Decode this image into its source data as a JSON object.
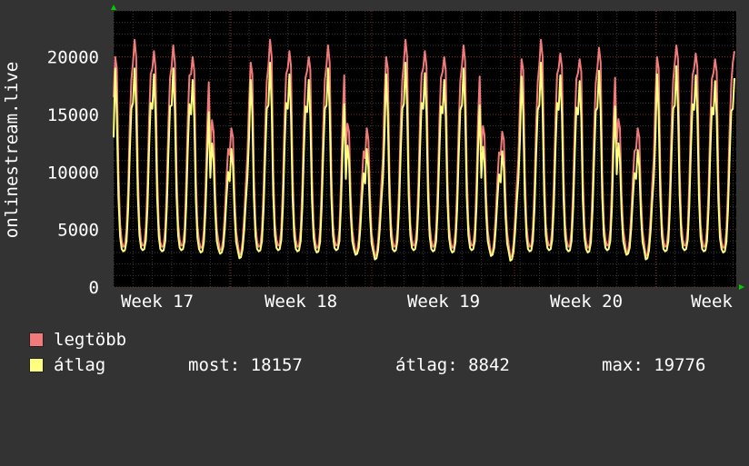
{
  "chart_data": {
    "type": "line",
    "ylabel": "onlinestream.live",
    "ylim": [
      0,
      24000
    ],
    "yticks": [
      0,
      5000,
      10000,
      15000,
      20000
    ],
    "x_tick_labels": [
      "Week 17",
      "Week 18",
      "Week 19",
      "Week 20",
      "Week"
    ],
    "grid": true,
    "legend_position": "bottom-left",
    "samples_per_day": 12,
    "series": [
      {
        "name": "legtöbb",
        "color": "#f27a7a",
        "values": [
          16500,
          20000,
          19000,
          10000,
          5500,
          4000,
          3500,
          3600,
          5000,
          8500,
          14000,
          18000,
          19500,
          21500,
          20000,
          10000,
          5500,
          4000,
          3600,
          3700,
          5200,
          9000,
          14500,
          18500,
          19000,
          20500,
          19000,
          9800,
          5400,
          3900,
          3500,
          3600,
          5100,
          8800,
          14200,
          18200,
          19200,
          21000,
          19500,
          10000,
          5500,
          4100,
          3600,
          3700,
          5000,
          9000,
          14600,
          18400,
          18500,
          20000,
          18800,
          9500,
          5300,
          4000,
          3400,
          3500,
          4900,
          8500,
          13800,
          17800,
          12000,
          14500,
          13500,
          8000,
          5000,
          4000,
          3200,
          3300,
          4200,
          6500,
          9500,
          12000,
          11500,
          13800,
          13000,
          7800,
          4800,
          3800,
          2800,
          2900,
          4000,
          6200,
          9000,
          11500,
          16000,
          19500,
          18500,
          9800,
          5400,
          3900,
          3500,
          3600,
          5000,
          8600,
          14000,
          17900,
          19200,
          21500,
          20000,
          10000,
          5500,
          4100,
          3600,
          3700,
          5100,
          9000,
          14500,
          18500,
          19000,
          20500,
          19200,
          9900,
          5400,
          4000,
          3500,
          3600,
          5000,
          8800,
          14300,
          18200,
          18800,
          20000,
          18900,
          9700,
          5300,
          3900,
          3400,
          3500,
          4900,
          8600,
          14000,
          18000,
          19300,
          21000,
          19500,
          10000,
          5500,
          4100,
          3600,
          3700,
          5000,
          9000,
          14500,
          18400,
          11800,
          14200,
          13500,
          7900,
          4900,
          3900,
          3000,
          3100,
          4100,
          6400,
          9300,
          11800,
          11200,
          13800,
          12800,
          7700,
          4700,
          3700,
          2700,
          2800,
          3900,
          6100,
          8900,
          11300,
          16500,
          20000,
          19000,
          10000,
          5500,
          4000,
          3500,
          3600,
          5000,
          8600,
          14200,
          18000,
          19500,
          21500,
          20000,
          10000,
          5500,
          4100,
          3600,
          3700,
          5100,
          9000,
          14600,
          18500,
          19000,
          20500,
          19200,
          9900,
          5400,
          4000,
          3500,
          3600,
          5000,
          8800,
          14300,
          18200,
          18700,
          20000,
          18800,
          9600,
          5300,
          3900,
          3400,
          3500,
          4900,
          8500,
          13900,
          17900,
          19200,
          21000,
          19600,
          10000,
          5500,
          4100,
          3600,
          3700,
          5000,
          9000,
          14500,
          18300,
          12000,
          14000,
          13200,
          7900,
          4900,
          3900,
          2900,
          3000,
          4100,
          6300,
          9200,
          11700,
          11500,
          13500,
          12800,
          7700,
          4700,
          3700,
          2600,
          2700,
          3800,
          6000,
          8800,
          11200,
          16200,
          19800,
          18900,
          9900,
          5400,
          4000,
          3500,
          3600,
          5000,
          8600,
          14100,
          17800,
          19300,
          21500,
          20000,
          10000,
          5500,
          4100,
          3600,
          3700,
          5100,
          9000,
          14600,
          18500,
          19000,
          20300,
          19100,
          9800,
          5400,
          4000,
          3500,
          3600,
          5000,
          8700,
          14200,
          18100,
          18600,
          19800,
          18700,
          9600,
          5300,
          3900,
          3400,
          3500,
          4900,
          8500,
          13800,
          17700,
          19000,
          20800,
          19500,
          10000,
          5500,
          4100,
          3600,
          3700,
          5000,
          8900,
          14400,
          18200,
          12500,
          14600,
          13800,
          8000,
          5000,
          4000,
          3000,
          3100,
          4100,
          6400,
          9300,
          11800,
          12000,
          13800,
          13000,
          7800,
          4800,
          3800,
          2700,
          2800,
          3900,
          6100,
          8900,
          11300,
          16500,
          20000,
          19000,
          10000,
          5500,
          4000,
          3500,
          3600,
          5000,
          8600,
          14200,
          18000,
          19500,
          21000,
          19800,
          10000,
          5500,
          4100,
          3600,
          3700,
          5100,
          9000,
          14600,
          18400,
          19000,
          20300,
          19100,
          9800,
          5400,
          4000,
          3500,
          3600,
          5000,
          8700,
          14200,
          18100,
          18600,
          19800,
          18700,
          9600,
          5300,
          3900,
          3400,
          3500,
          4900,
          8500,
          13800,
          17700,
          19500,
          20500
        ]
      },
      {
        "name": "átlag",
        "color": "#ffff80",
        "values": [
          13000,
          19000,
          15000,
          7800,
          4400,
          3300,
          3100,
          3200,
          4000,
          6800,
          11500,
          15500,
          16000,
          19000,
          15500,
          8000,
          4500,
          3400,
          3200,
          3300,
          4100,
          7000,
          12000,
          16000,
          15500,
          18500,
          15000,
          7700,
          4400,
          3300,
          3100,
          3200,
          4000,
          6900,
          11700,
          15700,
          15800,
          19000,
          15300,
          7900,
          4500,
          3400,
          3200,
          3300,
          4000,
          7000,
          12000,
          15900,
          15000,
          18000,
          14800,
          7500,
          4300,
          3300,
          3000,
          3100,
          3900,
          6700,
          11300,
          15200,
          9500,
          12500,
          11000,
          6500,
          4000,
          3300,
          2900,
          3000,
          3500,
          5200,
          7800,
          10000,
          9200,
          12000,
          10500,
          6300,
          3900,
          3200,
          2500,
          2600,
          3300,
          5000,
          7500,
          9600,
          13000,
          18000,
          15000,
          7800,
          4400,
          3300,
          3100,
          3200,
          4000,
          6800,
          11500,
          15500,
          15800,
          19500,
          15500,
          8000,
          4500,
          3400,
          3200,
          3300,
          4100,
          7000,
          12000,
          16000,
          15500,
          18500,
          15100,
          7800,
          4400,
          3300,
          3100,
          3200,
          4000,
          6900,
          11800,
          15700,
          15200,
          18000,
          14800,
          7600,
          4300,
          3300,
          3000,
          3100,
          3900,
          6800,
          11500,
          15500,
          15800,
          19000,
          15300,
          7900,
          4500,
          3400,
          3200,
          3300,
          4000,
          7000,
          12000,
          15900,
          9400,
          12300,
          11000,
          6400,
          4000,
          3300,
          2800,
          2900,
          3400,
          5100,
          7700,
          9900,
          9000,
          12000,
          10400,
          6200,
          3800,
          3100,
          2400,
          2500,
          3200,
          4900,
          7400,
          9500,
          13200,
          18500,
          15200,
          7900,
          4400,
          3300,
          3100,
          3200,
          4000,
          6800,
          11600,
          15500,
          15900,
          19500,
          15600,
          8000,
          4500,
          3400,
          3200,
          3300,
          4100,
          7000,
          12000,
          16000,
          15500,
          18600,
          15100,
          7800,
          4400,
          3300,
          3100,
          3200,
          4000,
          6900,
          11800,
          15700,
          15100,
          18000,
          14800,
          7600,
          4300,
          3300,
          3000,
          3100,
          3900,
          6700,
          11400,
          15400,
          15800,
          19000,
          15400,
          7900,
          4500,
          3400,
          3200,
          3300,
          4000,
          7000,
          12000,
          15800,
          9500,
          12200,
          10900,
          6400,
          4000,
          3300,
          2700,
          2800,
          3400,
          5100,
          7600,
          9800,
          9100,
          11800,
          10300,
          6200,
          3800,
          3100,
          2300,
          2400,
          3100,
          4800,
          7300,
          9400,
          13000,
          18300,
          15100,
          7800,
          4400,
          3300,
          3100,
          3200,
          4000,
          6800,
          11500,
          15400,
          15800,
          19500,
          15600,
          8000,
          4500,
          3400,
          3200,
          3300,
          4100,
          7000,
          12000,
          16000,
          15400,
          18400,
          15000,
          7700,
          4400,
          3300,
          3100,
          3200,
          4000,
          6900,
          11700,
          15600,
          15000,
          17900,
          14700,
          7500,
          4300,
          3300,
          3000,
          3100,
          3900,
          6700,
          11300,
          15300,
          15600,
          18800,
          15300,
          7900,
          4500,
          3400,
          3200,
          3300,
          4000,
          6900,
          11900,
          15700,
          9800,
          12500,
          11100,
          6500,
          4000,
          3300,
          2800,
          2900,
          3400,
          5200,
          7700,
          9900,
          9400,
          11900,
          10500,
          6300,
          3900,
          3200,
          2400,
          2500,
          3200,
          4900,
          7400,
          9500,
          13200,
          18500,
          15200,
          7900,
          4400,
          3300,
          3100,
          3200,
          4000,
          6800,
          11600,
          15500,
          15800,
          19200,
          15500,
          8000,
          4500,
          3400,
          3200,
          3300,
          4100,
          7000,
          12000,
          15900,
          15400,
          18400,
          15000,
          7700,
          4400,
          3300,
          3100,
          3200,
          4000,
          6900,
          11700,
          15600,
          15000,
          17900,
          14700,
          7500,
          4300,
          3300,
          3000,
          3100,
          3900,
          6700,
          11300,
          15300,
          15500,
          18157
        ]
      }
    ]
  },
  "legend": {
    "items": [
      {
        "label": "legtöbb",
        "color": "#f27a7a"
      },
      {
        "label": "átlag",
        "color": "#ffff80"
      }
    ],
    "stats": {
      "most": "most: 18157",
      "atlag": "átlag: 8842",
      "max": "max: 19776"
    }
  },
  "colors": {
    "background": "#333333",
    "plot_background": "#000000",
    "grid_minor": "#3a3a3a",
    "grid_major": "#7a2a2a",
    "axis_arrow": "#00cc00"
  }
}
